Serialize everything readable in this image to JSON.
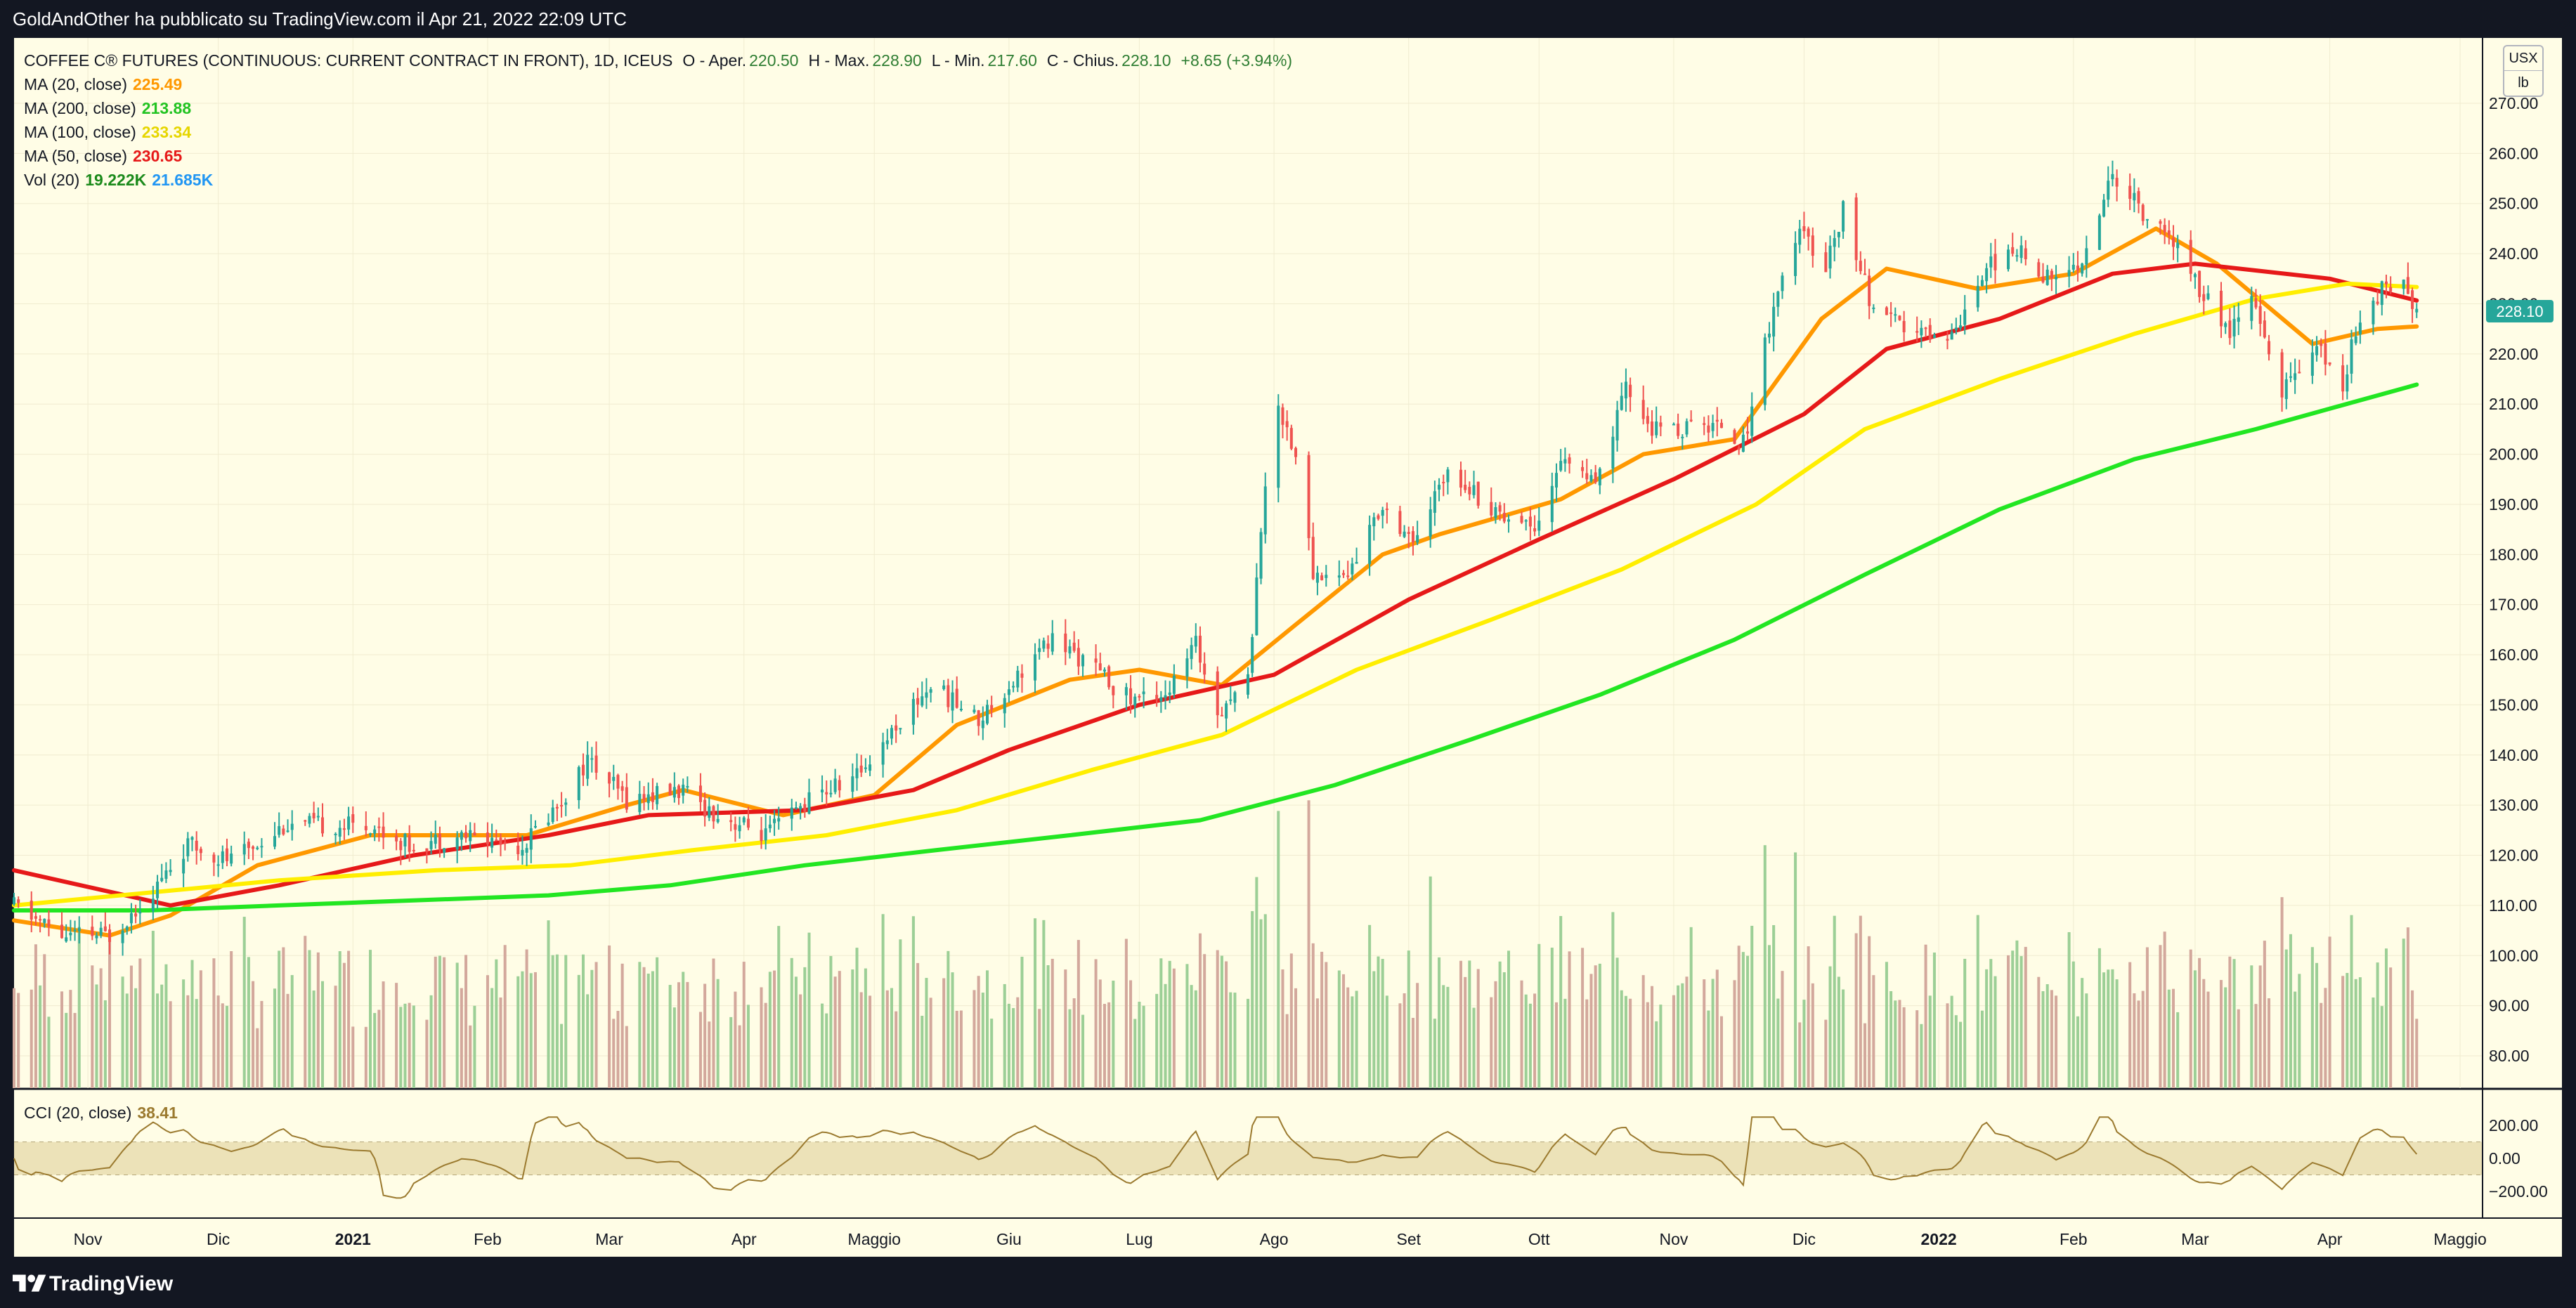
{
  "header": {
    "published": "GoldAndOther ha pubblicato su TradingView.com il Apr 21, 2022 22:09 UTC"
  },
  "footer": {
    "brand": "TradingView"
  },
  "legend": {
    "symbol": "COFFEE C® FUTURES (CONTINUOUS: CURRENT CONTRACT IN FRONT), 1D, ICEUS",
    "open_label": "O - Aper.",
    "open": "220.50",
    "high_label": "H - Max.",
    "high": "228.90",
    "low_label": "L - Min.",
    "low": "217.60",
    "close_label": "C - Chius.",
    "close": "228.10",
    "change": "+8.65 (+3.94%)",
    "ma20_label": "MA (20, close)",
    "ma20_value": "225.49",
    "ma200_label": "MA (200, close)",
    "ma200_value": "213.88",
    "ma100_label": "MA (100, close)",
    "ma100_value": "233.34",
    "ma50_label": "MA (50, close)",
    "ma50_value": "230.65",
    "vol_label": "Vol (20)",
    "vol_value": "19.222K",
    "vol_ma_value": "21.685K",
    "cci_label": "CCI (20, close)",
    "cci_value": "38.41"
  },
  "currency": {
    "unit": "USX",
    "sub": "lb"
  },
  "price_tag": "228.10",
  "colors": {
    "background": "#fffde6",
    "frame": "#131722",
    "grid": "#f0ecd0",
    "up_candle": "#26a69a",
    "down_candle": "#ef5350",
    "up_volume": "#9ccf96",
    "down_volume": "#d3a89c",
    "ma20": "#ff9800",
    "ma50": "#e61919",
    "ma100": "#ffee00",
    "ma200": "#22e622",
    "vol_ma": "#2196f3",
    "cci_line": "#9b7a2f",
    "cci_band": "#ece2b8",
    "price_tag": "#26a69a"
  },
  "chart_data": {
    "type": "candlestick",
    "title": "COFFEE C® FUTURES (CONTINUOUS: CURRENT CONTRACT IN FRONT), 1D, ICEUS",
    "ylim": [
      70,
      280
    ],
    "y_ticks": [
      80,
      90,
      100,
      110,
      120,
      130,
      140,
      150,
      160,
      170,
      180,
      190,
      200,
      210,
      220,
      230,
      240,
      250,
      260,
      270
    ],
    "y_tick_labels": [
      "80.00",
      "90.00",
      "100.00",
      "110.00",
      "120.00",
      "130.00",
      "140.00",
      "150.00",
      "160.00",
      "170.00",
      "180.00",
      "190.00",
      "200.00",
      "210.00",
      "220.00",
      "230.00",
      "240.00",
      "250.00",
      "260.00",
      "270.00"
    ],
    "x_range": [
      "2020-10-15",
      "2022-05-06"
    ],
    "x_ticks": [
      {
        "date": "2020-11-01",
        "label": "Nov",
        "bold": false
      },
      {
        "date": "2020-12-01",
        "label": "Dic",
        "bold": false
      },
      {
        "date": "2021-01-01",
        "label": "2021",
        "bold": true
      },
      {
        "date": "2021-02-01",
        "label": "Feb",
        "bold": false
      },
      {
        "date": "2021-03-01",
        "label": "Mar",
        "bold": false
      },
      {
        "date": "2021-04-01",
        "label": "Apr",
        "bold": false
      },
      {
        "date": "2021-05-01",
        "label": "Maggio",
        "bold": false
      },
      {
        "date": "2021-06-01",
        "label": "Giu",
        "bold": false
      },
      {
        "date": "2021-07-01",
        "label": "Lug",
        "bold": false
      },
      {
        "date": "2021-08-01",
        "label": "Ago",
        "bold": false
      },
      {
        "date": "2021-09-01",
        "label": "Set",
        "bold": false
      },
      {
        "date": "2021-10-01",
        "label": "Ott",
        "bold": false
      },
      {
        "date": "2021-11-01",
        "label": "Nov",
        "bold": false
      },
      {
        "date": "2021-12-01",
        "label": "Dic",
        "bold": false
      },
      {
        "date": "2022-01-01",
        "label": "2022",
        "bold": true
      },
      {
        "date": "2022-02-01",
        "label": "Feb",
        "bold": false
      },
      {
        "date": "2022-03-01",
        "label": "Mar",
        "bold": false
      },
      {
        "date": "2022-04-01",
        "label": "Apr",
        "bold": false
      },
      {
        "date": "2022-05-01",
        "label": "Maggio",
        "bold": false
      }
    ],
    "close_anchors": [
      [
        "2020-10-15",
        110
      ],
      [
        "2020-10-26",
        104
      ],
      [
        "2020-11-06",
        104
      ],
      [
        "2020-11-16",
        113
      ],
      [
        "2020-11-24",
        122
      ],
      [
        "2020-12-04",
        119
      ],
      [
        "2020-12-16",
        126
      ],
      [
        "2021-01-05",
        126
      ],
      [
        "2021-01-14",
        122
      ],
      [
        "2021-01-26",
        124
      ],
      [
        "2021-02-09",
        122
      ],
      [
        "2021-02-18",
        131
      ],
      [
        "2021-02-24",
        139
      ],
      [
        "2021-03-05",
        131
      ],
      [
        "2021-03-17",
        133
      ],
      [
        "2021-03-26",
        128
      ],
      [
        "2021-04-06",
        124
      ],
      [
        "2021-04-16",
        131
      ],
      [
        "2021-04-27",
        136
      ],
      [
        "2021-05-06",
        146
      ],
      [
        "2021-05-14",
        154
      ],
      [
        "2021-05-25",
        147
      ],
      [
        "2021-06-04",
        157
      ],
      [
        "2021-06-11",
        163
      ],
      [
        "2021-06-18",
        159
      ],
      [
        "2021-06-29",
        151
      ],
      [
        "2021-07-08",
        153
      ],
      [
        "2021-07-14",
        162
      ],
      [
        "2021-07-19",
        149
      ],
      [
        "2021-07-26",
        155
      ],
      [
        "2021-07-29",
        186
      ],
      [
        "2021-08-02",
        210
      ],
      [
        "2021-08-06",
        200
      ],
      [
        "2021-08-10",
        176
      ],
      [
        "2021-08-18",
        176
      ],
      [
        "2021-08-26",
        190
      ],
      [
        "2021-09-03",
        182
      ],
      [
        "2021-09-10",
        198
      ],
      [
        "2021-09-20",
        189
      ],
      [
        "2021-09-30",
        186
      ],
      [
        "2021-10-07",
        200
      ],
      [
        "2021-10-14",
        193
      ],
      [
        "2021-10-21",
        213
      ],
      [
        "2021-10-27",
        205
      ],
      [
        "2021-11-03",
        205
      ],
      [
        "2021-11-12",
        206
      ],
      [
        "2021-11-17",
        202
      ],
      [
        "2021-11-24",
        230
      ],
      [
        "2021-11-30",
        244
      ],
      [
        "2021-12-06",
        238
      ],
      [
        "2021-12-10",
        249
      ],
      [
        "2021-12-17",
        228
      ],
      [
        "2021-12-27",
        224
      ],
      [
        "2022-01-04",
        224
      ],
      [
        "2022-01-12",
        238
      ],
      [
        "2022-01-20",
        240
      ],
      [
        "2022-01-28",
        234
      ],
      [
        "2022-02-04",
        240
      ],
      [
        "2022-02-10",
        256
      ],
      [
        "2022-02-18",
        247
      ],
      [
        "2022-02-25",
        241
      ],
      [
        "2022-03-02",
        233
      ],
      [
        "2022-03-09",
        224
      ],
      [
        "2022-03-14",
        231
      ],
      [
        "2022-03-21",
        212
      ],
      [
        "2022-03-28",
        222
      ],
      [
        "2022-04-04",
        214
      ],
      [
        "2022-04-08",
        228
      ],
      [
        "2022-04-13",
        233
      ],
      [
        "2022-04-18",
        236
      ],
      [
        "2022-04-21",
        228.1
      ]
    ],
    "series": [
      {
        "name": "MA (20, close)",
        "color": "#ff9800",
        "points": [
          [
            "2020-10-15",
            107
          ],
          [
            "2020-11-06",
            104
          ],
          [
            "2020-11-20",
            108
          ],
          [
            "2020-12-10",
            118
          ],
          [
            "2021-01-05",
            124
          ],
          [
            "2021-02-10",
            124
          ],
          [
            "2021-03-05",
            130
          ],
          [
            "2021-03-18",
            133
          ],
          [
            "2021-04-10",
            128
          ],
          [
            "2021-05-01",
            132
          ],
          [
            "2021-05-20",
            146
          ],
          [
            "2021-06-15",
            155
          ],
          [
            "2021-07-01",
            157
          ],
          [
            "2021-07-20",
            154
          ],
          [
            "2021-08-06",
            166
          ],
          [
            "2021-08-26",
            180
          ],
          [
            "2021-09-08",
            184
          ],
          [
            "2021-10-06",
            191
          ],
          [
            "2021-10-25",
            200
          ],
          [
            "2021-11-15",
            203
          ],
          [
            "2021-12-05",
            227
          ],
          [
            "2021-12-20",
            237
          ],
          [
            "2022-01-10",
            233
          ],
          [
            "2022-02-01",
            236
          ],
          [
            "2022-02-20",
            245
          ],
          [
            "2022-03-06",
            238
          ],
          [
            "2022-03-28",
            222
          ],
          [
            "2022-04-12",
            225
          ],
          [
            "2022-04-21",
            225.49
          ]
        ]
      },
      {
        "name": "MA (50, close)",
        "color": "#e61919",
        "points": [
          [
            "2020-10-15",
            117
          ],
          [
            "2020-11-20",
            110
          ],
          [
            "2020-12-15",
            114
          ],
          [
            "2021-01-15",
            120
          ],
          [
            "2021-02-15",
            124
          ],
          [
            "2021-03-10",
            128
          ],
          [
            "2021-04-15",
            129
          ],
          [
            "2021-05-10",
            133
          ],
          [
            "2021-06-01",
            141
          ],
          [
            "2021-07-01",
            150
          ],
          [
            "2021-08-01",
            156
          ],
          [
            "2021-09-01",
            171
          ],
          [
            "2021-10-01",
            183
          ],
          [
            "2021-11-01",
            195
          ],
          [
            "2021-12-01",
            208
          ],
          [
            "2021-12-20",
            221
          ],
          [
            "2022-01-15",
            227
          ],
          [
            "2022-02-10",
            236
          ],
          [
            "2022-03-01",
            238
          ],
          [
            "2022-04-01",
            235
          ],
          [
            "2022-04-21",
            230.65
          ]
        ]
      },
      {
        "name": "MA (100, close)",
        "color": "#ffee00",
        "points": [
          [
            "2020-10-15",
            110
          ],
          [
            "2020-12-15",
            115
          ],
          [
            "2021-01-20",
            117
          ],
          [
            "2021-02-20",
            118
          ],
          [
            "2021-03-20",
            121
          ],
          [
            "2021-04-20",
            124
          ],
          [
            "2021-05-20",
            129
          ],
          [
            "2021-06-20",
            137
          ],
          [
            "2021-07-20",
            144
          ],
          [
            "2021-08-20",
            157
          ],
          [
            "2021-09-20",
            167
          ],
          [
            "2021-10-20",
            177
          ],
          [
            "2021-11-20",
            190
          ],
          [
            "2021-12-15",
            205
          ],
          [
            "2022-01-15",
            215
          ],
          [
            "2022-02-15",
            224
          ],
          [
            "2022-03-15",
            231
          ],
          [
            "2022-04-05",
            234
          ],
          [
            "2022-04-21",
            233.34
          ]
        ]
      },
      {
        "name": "MA (200, close)",
        "color": "#22e622",
        "points": [
          [
            "2020-10-15",
            109
          ],
          [
            "2020-11-15",
            109
          ],
          [
            "2020-12-15",
            110
          ],
          [
            "2021-01-15",
            111
          ],
          [
            "2021-02-15",
            112
          ],
          [
            "2021-03-15",
            114
          ],
          [
            "2021-04-15",
            118
          ],
          [
            "2021-05-15",
            121
          ],
          [
            "2021-06-15",
            124
          ],
          [
            "2021-07-15",
            127
          ],
          [
            "2021-08-15",
            134
          ],
          [
            "2021-09-15",
            143
          ],
          [
            "2021-10-15",
            152
          ],
          [
            "2021-11-15",
            163
          ],
          [
            "2021-12-15",
            176
          ],
          [
            "2022-01-15",
            189
          ],
          [
            "2022-02-15",
            199
          ],
          [
            "2022-03-15",
            205
          ],
          [
            "2022-04-21",
            213.88
          ]
        ]
      }
    ],
    "volume": {
      "name": "Vol (20)",
      "last": "19.222K",
      "ma": "21.685K"
    },
    "cci": {
      "name": "CCI (20, close)",
      "last": 38.41,
      "ylim": [
        -250,
        260
      ],
      "ticks": [
        -200,
        0,
        200
      ],
      "tick_labels": [
        "−200.00",
        "0.00",
        "200.00"
      ],
      "band": [
        -100,
        100
      ]
    }
  }
}
